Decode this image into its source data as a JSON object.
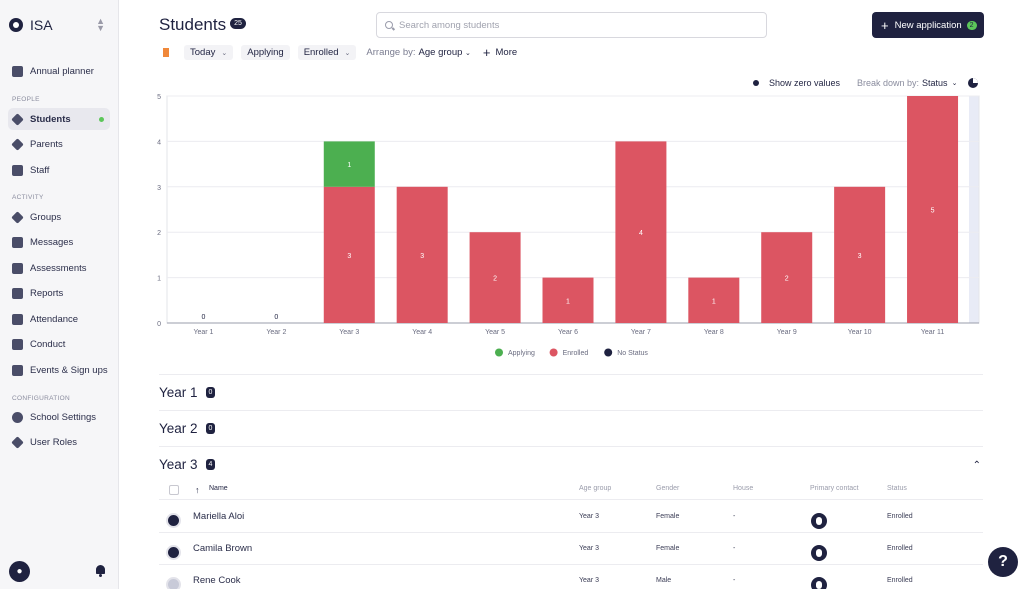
{
  "sidebar": {
    "org_name": "ISA",
    "sections": {
      "people": "PEOPLE",
      "activity": "ACTIVITY",
      "configuration": "CONFIGURATION"
    },
    "items": {
      "annual_planner": "Annual planner",
      "students": "Students",
      "parents": "Parents",
      "staff": "Staff",
      "groups": "Groups",
      "messages": "Messages",
      "assessments": "Assessments",
      "reports": "Reports",
      "attendance": "Attendance",
      "conduct": "Conduct",
      "events": "Events & Sign ups",
      "school_settings": "School Settings",
      "user_roles": "User Roles"
    },
    "active_item": "students"
  },
  "header": {
    "title": "Students",
    "count": "25",
    "search_placeholder": "Search among students",
    "new_application_label": "New application",
    "new_application_count": "2"
  },
  "filters": {
    "date": "Today",
    "applying": "Applying",
    "enrolled": "Enrolled",
    "arrange_label": "Arrange by:",
    "arrange_value": "Age group",
    "more": "More"
  },
  "chart_controls": {
    "show_zero": "Show zero values",
    "breakdown_label": "Break down by:",
    "breakdown_value": "Status"
  },
  "colors": {
    "applying": "#4caf50",
    "enrolled": "#dc5562",
    "no_status": "#1f2240",
    "brand": "#1f2240"
  },
  "chart_data": {
    "type": "bar",
    "categories": [
      "Year 1",
      "Year 2",
      "Year 3",
      "Year 4",
      "Year 5",
      "Year 6",
      "Year 7",
      "Year 8",
      "Year 9",
      "Year 10",
      "Year 11"
    ],
    "series": [
      {
        "name": "Enrolled",
        "values": [
          0,
          0,
          3,
          3,
          2,
          1,
          4,
          1,
          2,
          3,
          5
        ]
      },
      {
        "name": "Applying",
        "values": [
          0,
          0,
          1,
          0,
          0,
          0,
          0,
          0,
          0,
          0,
          0
        ]
      },
      {
        "name": "No Status",
        "values": [
          0,
          0,
          0,
          0,
          0,
          0,
          0,
          0,
          0,
          0,
          0
        ]
      }
    ],
    "stacked": true,
    "ylim": [
      0,
      5
    ],
    "yticks": [
      0,
      1,
      2,
      3,
      4,
      5
    ],
    "legend": "bottom-center",
    "grid": true
  },
  "groups": [
    {
      "label": "Year 1",
      "count": "0"
    },
    {
      "label": "Year 2",
      "count": "0"
    },
    {
      "label": "Year 3",
      "count": "4"
    }
  ],
  "table": {
    "columns": {
      "name": "Name",
      "age_group": "Age group",
      "gender": "Gender",
      "house": "House",
      "primary_contact": "Primary contact",
      "status": "Status"
    },
    "rows": [
      {
        "name": "Mariella Aloi",
        "age_group": "Year 3",
        "gender": "Female",
        "house": "-",
        "status": "Enrolled"
      },
      {
        "name": "Camila Brown",
        "age_group": "Year 3",
        "gender": "Female",
        "house": "-",
        "status": "Enrolled"
      },
      {
        "name": "Rene Cook",
        "age_group": "Year 3",
        "gender": "Male",
        "house": "-",
        "status": "Enrolled"
      }
    ]
  },
  "help_label": "?"
}
